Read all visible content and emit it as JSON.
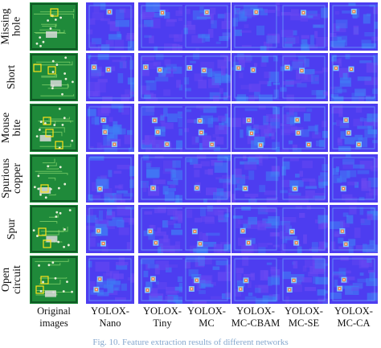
{
  "figure": {
    "rows": [
      {
        "label": "Missing\nhole"
      },
      {
        "label": "Short"
      },
      {
        "label": "Mouse\nbite"
      },
      {
        "label": "Spurious\ncopper"
      },
      {
        "label": "Spur"
      },
      {
        "label": "Open\ncircuit"
      }
    ],
    "columns": [
      {
        "label": "Original\nimages"
      },
      {
        "label": "YOLOX-\nNano"
      },
      {
        "label": "YOLOX-\nTiny"
      },
      {
        "label": "YOLOX-\nMC"
      },
      {
        "label": "YOLOX-\nMC-CBAM"
      },
      {
        "label": "YOLOX-\nMC-SE"
      },
      {
        "label": "YOLOX-\nMC-CA"
      }
    ],
    "caption": "Fig. 10. Feature extraction results of different networks",
    "colors": {
      "pcb_green": "#1f8a3a",
      "pcb_dark": "#0f5a24",
      "pcb_trace": "#7fd06a",
      "heat_base": "#4d3df0",
      "heat_mid": "#3f7ff5",
      "heat_hot": "#f07a3a",
      "highlight_box": "#ffe21a"
    }
  }
}
